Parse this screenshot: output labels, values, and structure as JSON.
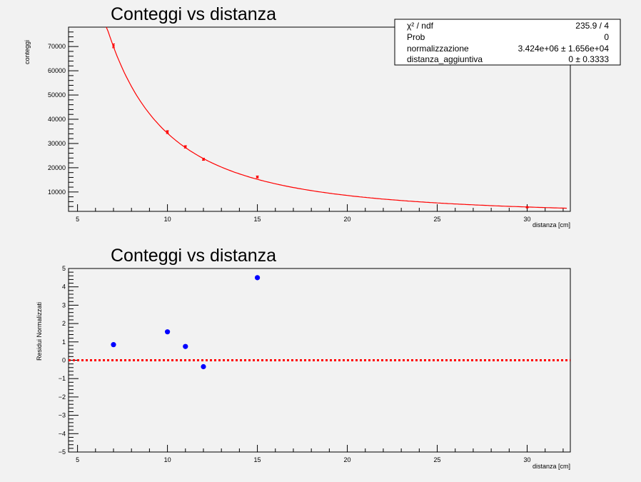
{
  "chart_data": [
    {
      "type": "scatter",
      "title": "Conteggi vs distanza",
      "xlabel": "distanza [cm]",
      "ylabel": "conteggi",
      "xlim": [
        4.5,
        32.4
      ],
      "ylim": [
        2000,
        78000
      ],
      "x_ticks": [
        "5",
        "10",
        "15",
        "20",
        "25",
        "30"
      ],
      "y_ticks": [
        "10000",
        "20000",
        "30000",
        "40000",
        "50000",
        "60000",
        "70000"
      ],
      "series": [
        {
          "kind": "points-with-errors",
          "color": "#ff0000",
          "points": [
            {
              "x": 7,
              "y": 70300,
              "err": 800
            },
            {
              "x": 10,
              "y": 34700,
              "err": 600
            },
            {
              "x": 11,
              "y": 28600,
              "err": 500
            },
            {
              "x": 12,
              "y": 23500,
              "err": 450
            },
            {
              "x": 15,
              "y": 16200,
              "err": 400
            },
            {
              "x": 30,
              "y": 3700,
              "err": 200
            }
          ]
        },
        {
          "kind": "fit-curve",
          "color": "#ff0000",
          "model": "normalizzazione / (x + distanza_aggiuntiva)^2",
          "x_from": 6.6,
          "x_to": 32.2
        }
      ],
      "stats_box": {
        "rows": [
          {
            "label": "χ² / ndf",
            "value": "235.9 / 4"
          },
          {
            "label": "Prob",
            "value": "0"
          },
          {
            "label": "normalizzazione",
            "value": "3.424e+06 ± 1.656e+04"
          },
          {
            "label": "distanza_aggiuntiva",
            "value": "0 ± 0.3333"
          }
        ],
        "normalizzazione": 3424000,
        "distanza_aggiuntiva": 0
      }
    },
    {
      "type": "scatter",
      "title": "Conteggi vs distanza",
      "xlabel": "distanza [cm]",
      "ylabel": "Residui Normalizzati",
      "xlim": [
        4.5,
        32.4
      ],
      "ylim": [
        -5,
        5
      ],
      "x_ticks": [
        "5",
        "10",
        "15",
        "20",
        "25",
        "30"
      ],
      "y_ticks": [
        "−5",
        "−4",
        "−3",
        "−2",
        "−1",
        "0",
        "1",
        "2",
        "3",
        "4",
        "5"
      ],
      "series": [
        {
          "kind": "points",
          "color": "#0000ff",
          "points": [
            {
              "x": 7,
              "y": 0.85
            },
            {
              "x": 10,
              "y": 1.55
            },
            {
              "x": 11,
              "y": 0.75
            },
            {
              "x": 12,
              "y": -0.35
            },
            {
              "x": 15,
              "y": 4.5
            }
          ]
        },
        {
          "kind": "reference-line",
          "color": "#ff0000",
          "style": "dotted",
          "y": 0
        }
      ]
    }
  ]
}
